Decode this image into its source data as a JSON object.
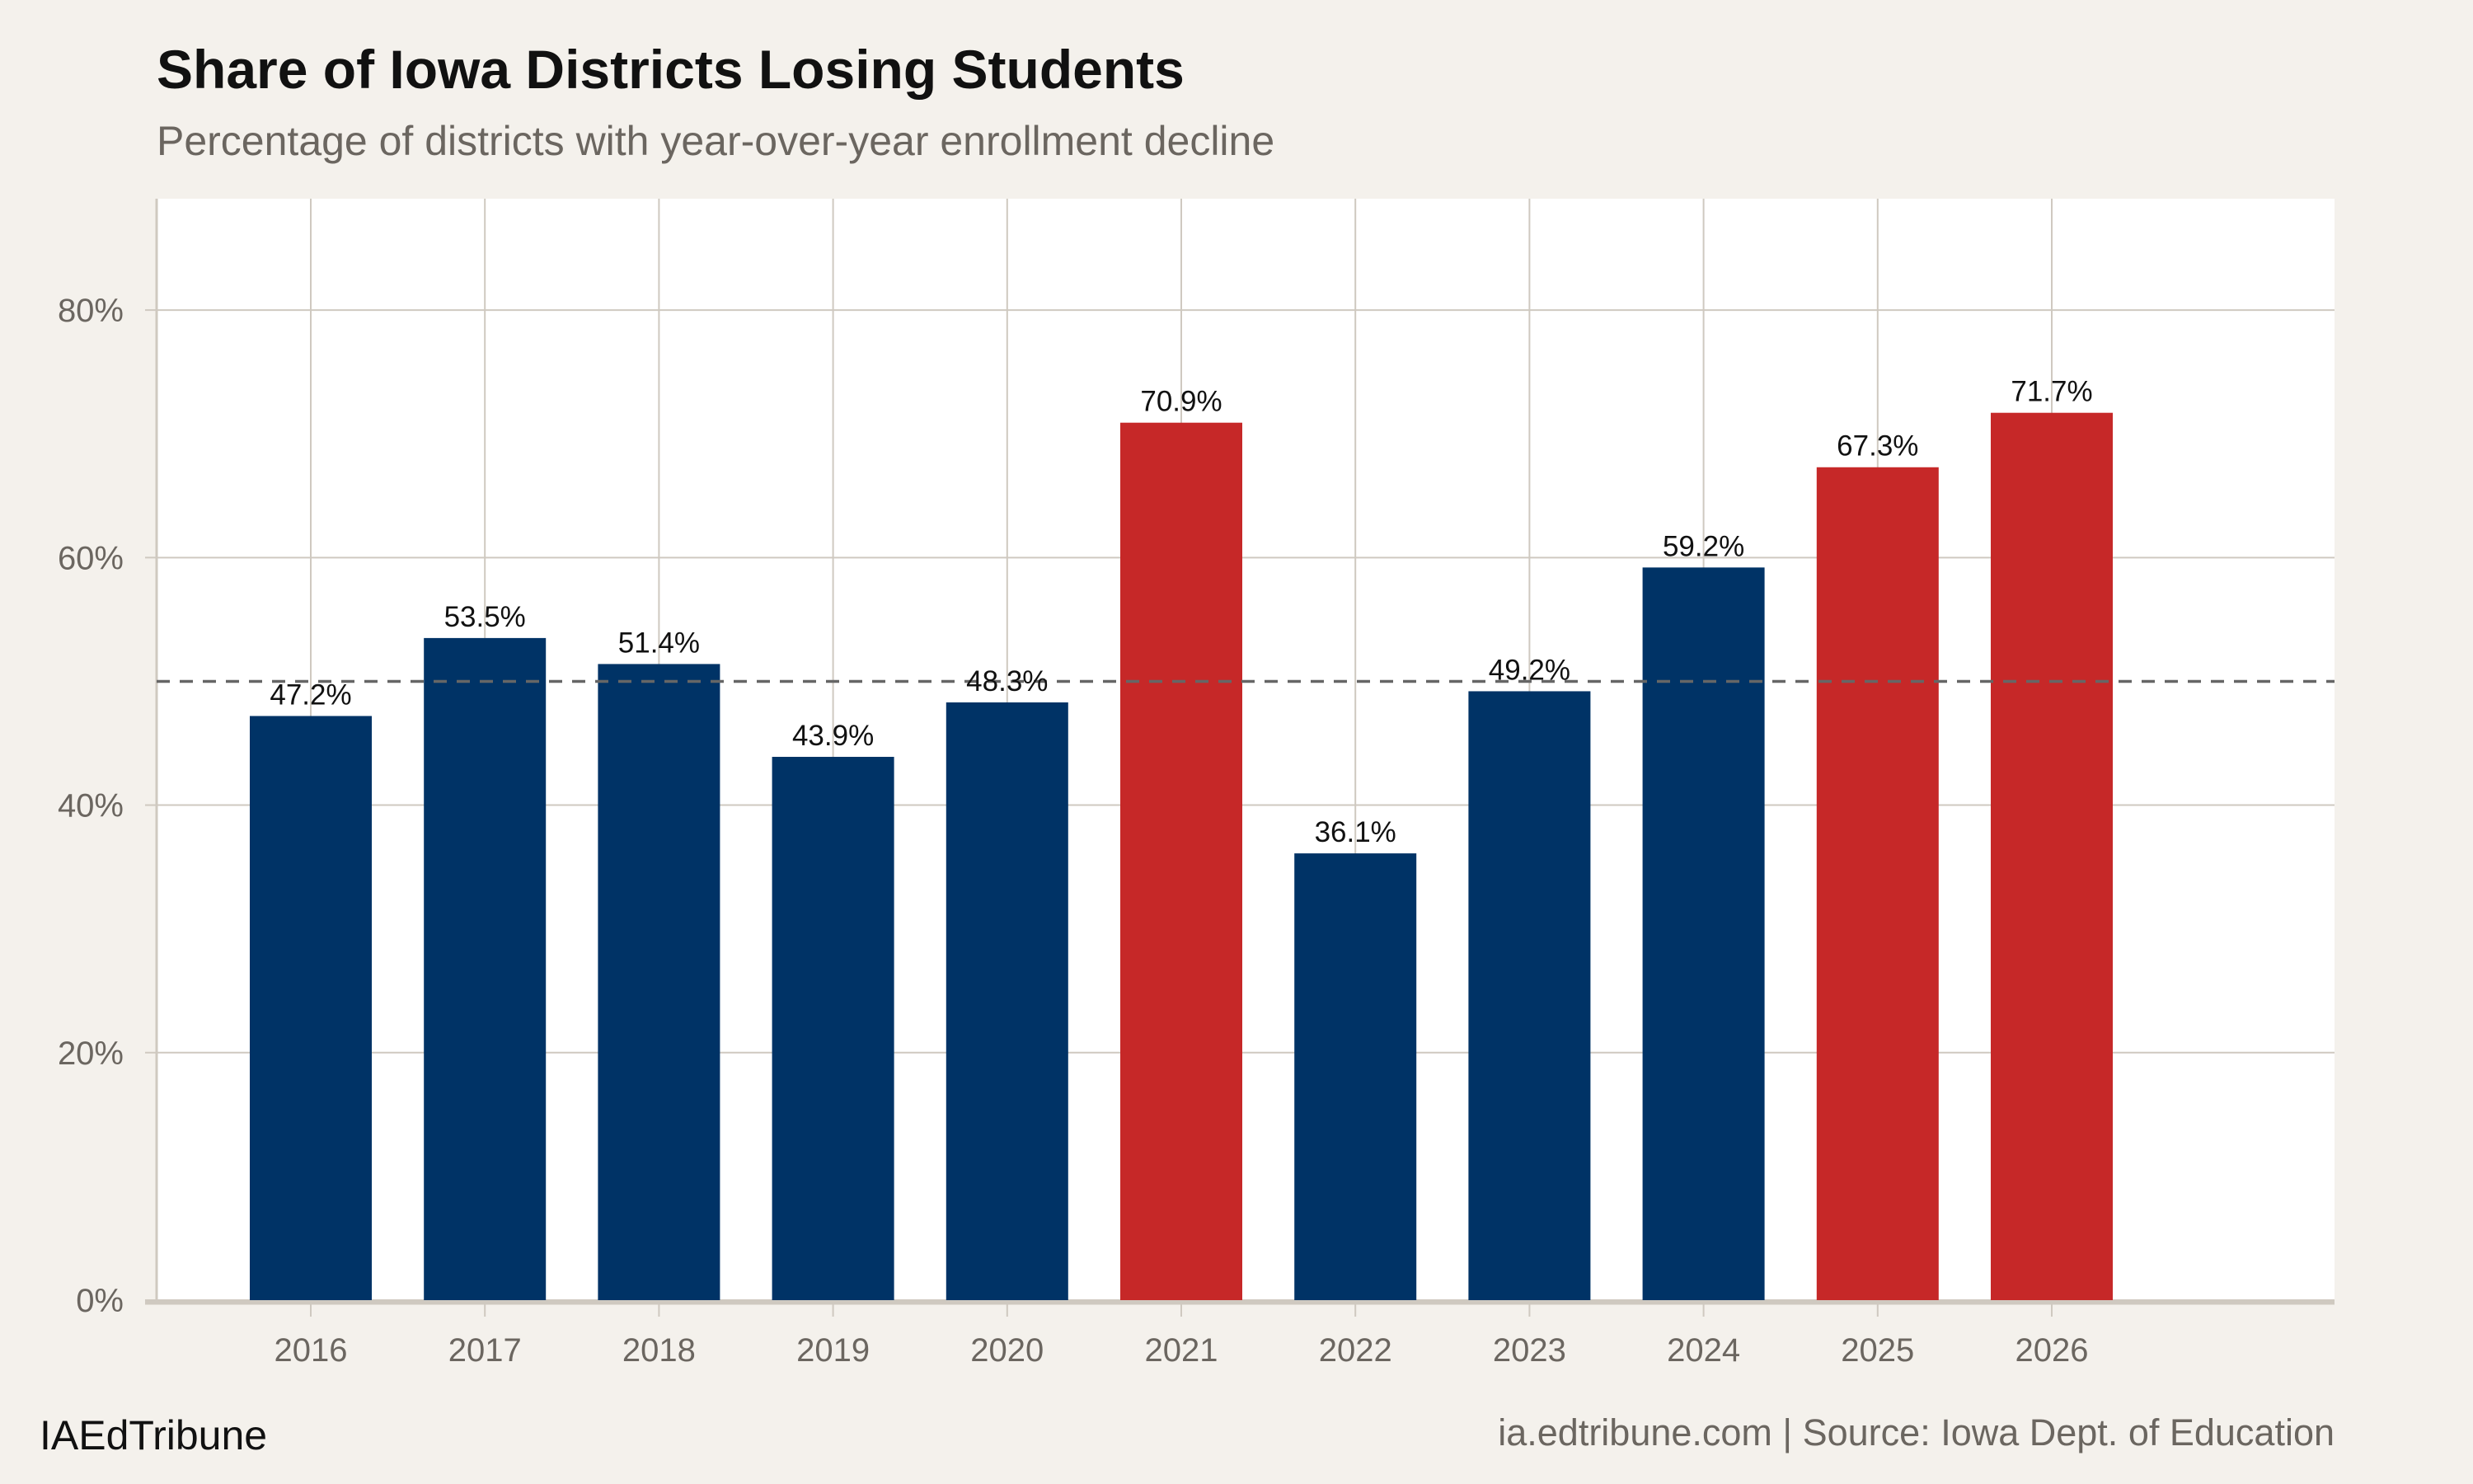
{
  "chart_data": {
    "type": "bar",
    "title": "Share of Iowa Districts Losing Students",
    "subtitle": "Percentage of districts with year-over-year enrollment decline",
    "xlabel": "",
    "ylabel": "",
    "categories": [
      "2016",
      "2017",
      "2018",
      "2019",
      "2020",
      "2021",
      "2022",
      "2023",
      "2024",
      "2025",
      "2026"
    ],
    "values": [
      47.2,
      53.5,
      51.4,
      43.9,
      48.3,
      70.9,
      36.1,
      49.2,
      59.2,
      67.3,
      71.7
    ],
    "data_labels": [
      "47.2%",
      "53.5%",
      "51.4%",
      "43.9%",
      "48.3%",
      "70.9%",
      "36.1%",
      "49.2%",
      "59.2%",
      "67.3%",
      "71.7%"
    ],
    "highlighted": [
      false,
      false,
      false,
      false,
      false,
      true,
      false,
      false,
      false,
      true,
      true
    ],
    "ylim": [
      0,
      89
    ],
    "yticks": [
      0,
      20,
      40,
      60,
      80
    ],
    "ytick_labels": [
      "0%",
      "20%",
      "40%",
      "60%",
      "80%"
    ],
    "reference_line": 50,
    "grid": true,
    "colors": {
      "default": "#003366",
      "highlight": "#c62828",
      "reference_line": "#666666",
      "grid": "#cfc9c0",
      "panel": "#ffffff",
      "background": "#f4f1ec"
    }
  },
  "footer": {
    "brand": "IAEdTribune",
    "caption": "ia.edtribune.com | Source: Iowa Dept. of Education"
  }
}
